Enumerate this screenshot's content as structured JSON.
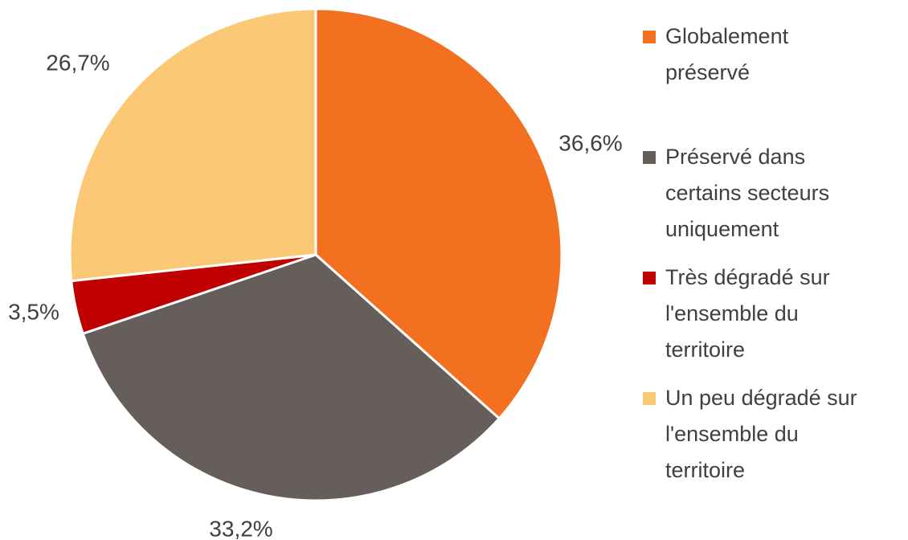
{
  "chart_data": {
    "type": "pie",
    "categories": [
      "Globalement préservé",
      "Préservé dans certains secteurs uniquement",
      "Très dégradé sur l'ensemble du territoire",
      "Un peu dégradé sur l'ensemble du territoire"
    ],
    "values": [
      36.6,
      33.2,
      3.5,
      26.7
    ],
    "value_labels": [
      "36,6%",
      "33,2%",
      "3,5%",
      "26,7%"
    ],
    "colors": [
      "#F37021",
      "#665E5B",
      "#C00000",
      "#FBC976"
    ]
  }
}
